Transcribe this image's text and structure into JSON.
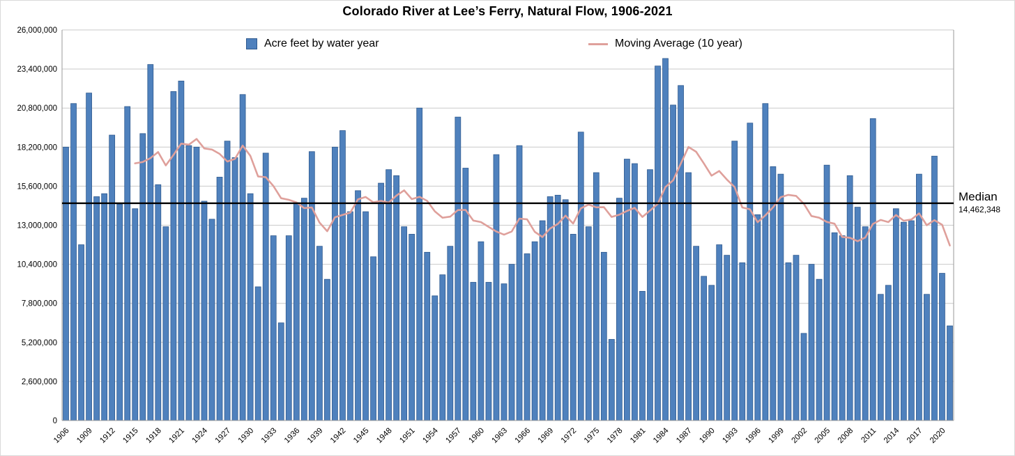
{
  "title": "Colorado River at Lee’s Ferry, Natural Flow, 1906-2021",
  "legend": {
    "bar_label": "Acre feet by water year",
    "line_label": "Moving Average (10 year)"
  },
  "median": {
    "label": "Median",
    "value": 14462348,
    "value_label": "14,462,348"
  },
  "colors": {
    "bar_fill": "#4f81bd",
    "bar_stroke": "#2f5a8f",
    "line": "#dfa09b",
    "median_line": "#000000",
    "grid": "#c9c9c9",
    "axis": "#9a9a9a",
    "text": "#000000"
  },
  "chart_data": {
    "type": "bar",
    "title": "Colorado River at Lee’s Ferry, Natural Flow, 1906-2021",
    "xlabel": "",
    "ylabel": "",
    "years_start": 1906,
    "years_end": 2021,
    "ylim": [
      0,
      26000000
    ],
    "y_step": 2600000,
    "y_tick_labels": [
      "0",
      "2,600,000",
      "5,200,000",
      "7,800,000",
      "10,400,000",
      "13,000,000",
      "15,600,000",
      "18,200,000",
      "20,800,000",
      "23,400,000",
      "26,000,000"
    ],
    "x_tick_start": 1906,
    "x_tick_step": 3,
    "grid": true,
    "legend_position": "top-inside",
    "median_line_value": 14462348,
    "series": [
      {
        "name": "Acre feet by water year",
        "type": "bar",
        "values": [
          18200000,
          21100000,
          11700000,
          21800000,
          14900000,
          15100000,
          19000000,
          14400000,
          20900000,
          14100000,
          19100000,
          23700000,
          15700000,
          12900000,
          21900000,
          22600000,
          18300000,
          18200000,
          14600000,
          13400000,
          16200000,
          18600000,
          17500000,
          21700000,
          15100000,
          8900000,
          17800000,
          12300000,
          6500000,
          12300000,
          14500000,
          14800000,
          17900000,
          11600000,
          9400000,
          18200000,
          19300000,
          13900000,
          15300000,
          13900000,
          10900000,
          15800000,
          16700000,
          16300000,
          12900000,
          12400000,
          20800000,
          11200000,
          8300000,
          9700000,
          11600000,
          20200000,
          16800000,
          9200000,
          11900000,
          9200000,
          17700000,
          9100000,
          10400000,
          18300000,
          11100000,
          11900000,
          13300000,
          14900000,
          15000000,
          14700000,
          12400000,
          19200000,
          12900000,
          16500000,
          11200000,
          5400000,
          14800000,
          17400000,
          17100000,
          8600000,
          16700000,
          23600000,
          24100000,
          21000000,
          22300000,
          16500000,
          11600000,
          9600000,
          9000000,
          11700000,
          11000000,
          18600000,
          10500000,
          19800000,
          13700000,
          21100000,
          16900000,
          16400000,
          10500000,
          11000000,
          5800000,
          10400000,
          9400000,
          17000000,
          12500000,
          12300000,
          16300000,
          14200000,
          12900000,
          20100000,
          8400000,
          9000000,
          14100000,
          13200000,
          13300000,
          16400000,
          8400000,
          17600000,
          9800000,
          6300000
        ]
      },
      {
        "name": "Moving Average (10 year)",
        "type": "line",
        "window": 10,
        "derived_from": "10-year trailing mean of bar series values"
      }
    ]
  }
}
